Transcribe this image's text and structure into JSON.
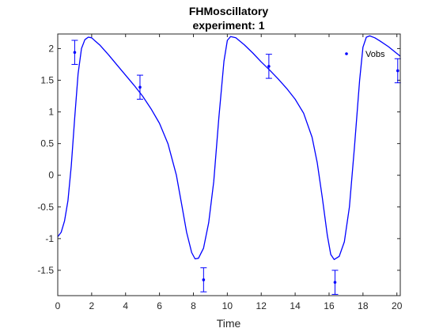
{
  "chart_data": {
    "type": "line",
    "title": [
      "FHMoscillatory",
      "experiment: 1"
    ],
    "xlabel": "Time",
    "ylabel": "",
    "xlim": [
      0,
      20.2
    ],
    "ylim": [
      -1.9,
      2.23
    ],
    "xticks": [
      0,
      2,
      4,
      6,
      8,
      10,
      12,
      14,
      16,
      18,
      20
    ],
    "yticks": [
      -1.5,
      -1,
      -0.5,
      0,
      0.5,
      1,
      1.5,
      2
    ],
    "ytick_labels": [
      "-1.5",
      "-1",
      "-0.5",
      "0",
      "0.5",
      "1",
      "1.5",
      "2"
    ],
    "grid": false,
    "legend": {
      "position": "top-right",
      "entries": [
        "Vobs"
      ]
    },
    "color": "#0000ff",
    "series": [
      {
        "kind": "line",
        "x": [
          0,
          0.2,
          0.4,
          0.6,
          0.8,
          1.0,
          1.2,
          1.4,
          1.6,
          1.8,
          2.0,
          2.2,
          2.5,
          3.0,
          3.5,
          4.0,
          4.5,
          5.0,
          5.5,
          6.0,
          6.5,
          7.0,
          7.3,
          7.6,
          7.9,
          8.1,
          8.3,
          8.6,
          8.9,
          9.2,
          9.5,
          9.8,
          10.0,
          10.2,
          10.5,
          11.0,
          11.5,
          12.0,
          12.5,
          13.0,
          13.5,
          14.0,
          14.5,
          15.0,
          15.3,
          15.6,
          15.9,
          16.1,
          16.3,
          16.6,
          16.9,
          17.2,
          17.5,
          17.8,
          18.0,
          18.2,
          18.4,
          18.7,
          19.0,
          19.5,
          20.2
        ],
        "y": [
          -0.97,
          -0.9,
          -0.72,
          -0.4,
          0.15,
          0.9,
          1.6,
          2.0,
          2.14,
          2.18,
          2.17,
          2.12,
          2.05,
          1.9,
          1.74,
          1.58,
          1.42,
          1.25,
          1.05,
          0.82,
          0.5,
          0.0,
          -0.45,
          -0.9,
          -1.22,
          -1.32,
          -1.31,
          -1.15,
          -0.75,
          -0.1,
          0.9,
          1.8,
          2.13,
          2.19,
          2.17,
          2.06,
          1.93,
          1.79,
          1.66,
          1.52,
          1.37,
          1.2,
          0.98,
          0.6,
          0.2,
          -0.35,
          -0.95,
          -1.25,
          -1.33,
          -1.28,
          -1.05,
          -0.5,
          0.45,
          1.5,
          2.02,
          2.18,
          2.2,
          2.17,
          2.12,
          2.03,
          1.88
        ]
      },
      {
        "kind": "errorbar",
        "name": "Vobs",
        "x": [
          1.0,
          4.85,
          8.6,
          12.45,
          16.35,
          20.05
        ],
        "y": [
          1.94,
          1.39,
          -1.65,
          1.72,
          -1.69,
          1.65
        ],
        "err": [
          0.19,
          0.19,
          0.19,
          0.19,
          0.19,
          0.19
        ]
      }
    ]
  }
}
